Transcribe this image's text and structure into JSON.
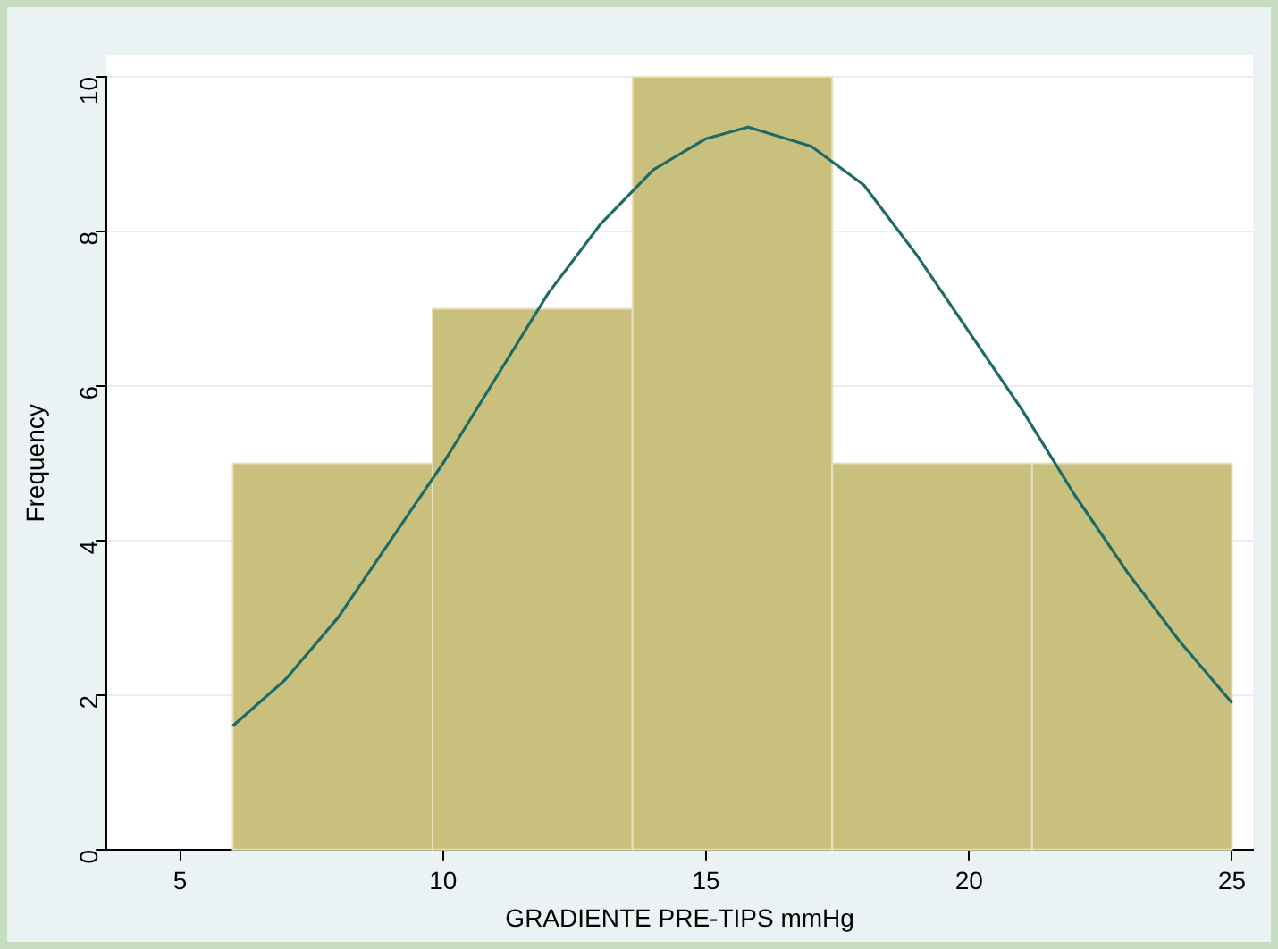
{
  "chart_data": {
    "type": "histogram",
    "xlabel": "GRADIENTE PRE-TIPS mmHg",
    "ylabel": "Frequency",
    "bins": [
      6,
      9.8,
      13.6,
      17.4,
      21.2,
      25
    ],
    "values": [
      5,
      7,
      10,
      5,
      5
    ],
    "color": "#c9c07e",
    "series": [
      {
        "type": "line",
        "color": "#1e6a66",
        "marker": "none",
        "x": [
          6,
          7,
          8,
          9,
          10,
          11,
          12,
          13,
          14,
          15,
          15.8,
          17,
          18,
          19,
          20,
          21,
          22,
          23,
          24,
          25
        ],
        "values": [
          1.6,
          2.2,
          3.0,
          4.0,
          5.0,
          6.1,
          7.2,
          8.1,
          8.8,
          9.2,
          9.35,
          9.1,
          8.6,
          7.7,
          6.7,
          5.7,
          4.6,
          3.6,
          2.7,
          1.9
        ]
      }
    ],
    "xlim": [
      3.6,
      25.4
    ],
    "xticks": [
      5,
      10,
      15,
      20,
      25
    ],
    "ylim": [
      0,
      10
    ],
    "yticks": [
      0,
      2,
      4,
      6,
      8,
      10
    ],
    "grid": "y",
    "legend": false
  }
}
